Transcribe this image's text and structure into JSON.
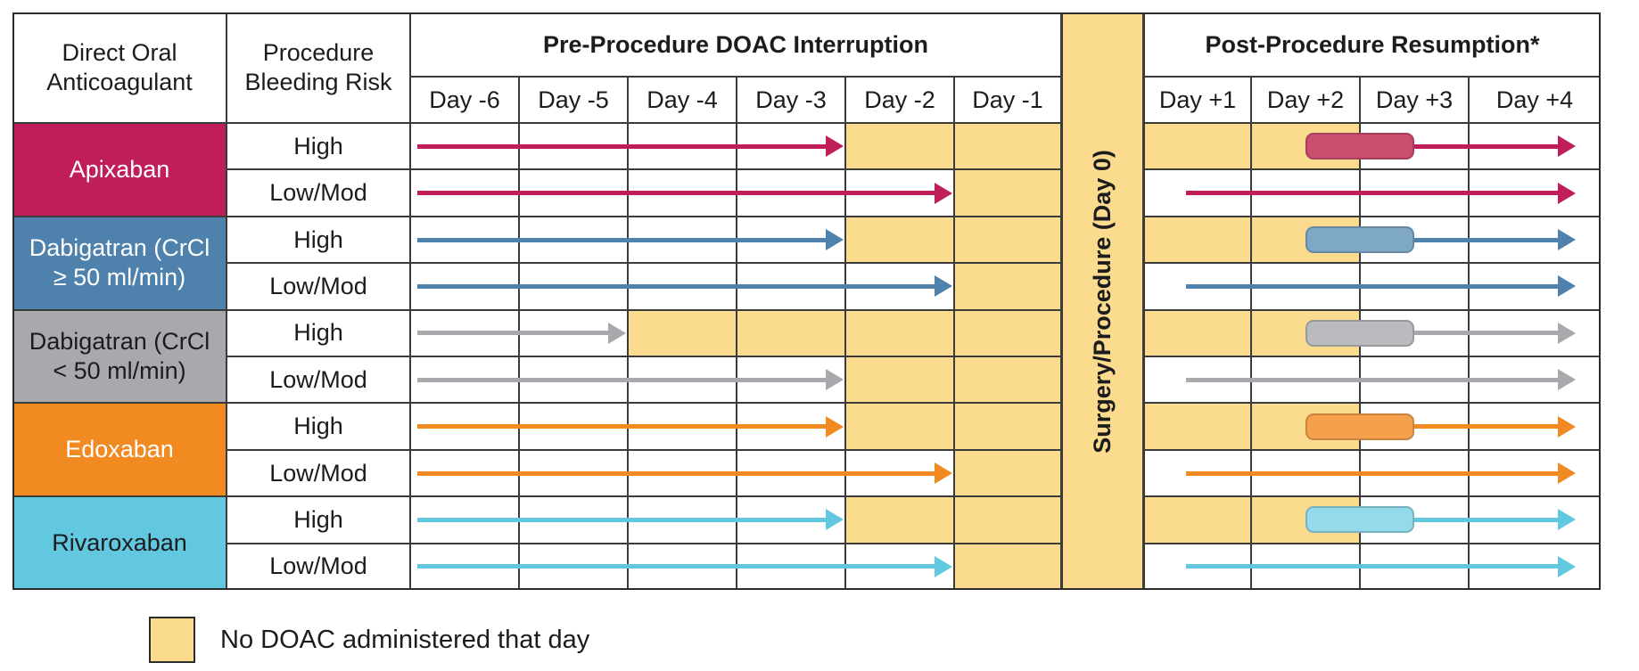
{
  "figure": {
    "headers": {
      "drug_col": "Direct Oral Anticoagulant",
      "risk_col": "Procedure Bleeding Risk",
      "pre_section": "Pre-Procedure DOAC Interruption",
      "surgery_col": "Surgery/Procedure (Day 0)",
      "post_section": "Post-Procedure Resumption*"
    },
    "legend": {
      "label": "No DOAC administered that day"
    }
  },
  "colors": {
    "no_doac_fill": "#FBDC8E",
    "grid_line": "#3B3B3B",
    "text_dark": "#1C1C1E",
    "drug_groups": {
      "apixaban": {
        "bg": "#C01E5A",
        "text": "#FFFFFF",
        "arrow": "#C01E5A",
        "pill": "#CA4E70"
      },
      "dabigatran_crcl_ge_50": {
        "bg": "#4E81AC",
        "text": "#FFFFFF",
        "arrow": "#4E81AC",
        "pill": "#7FA7C6"
      },
      "dabigatran_crcl_lt_50": {
        "bg": "#A7A9AC",
        "text": "#1C1C1E",
        "arrow": "#A7A9AC",
        "pill": "#B9BBBE"
      },
      "edoxaban": {
        "bg": "#F18A21",
        "text": "#FFFFFF",
        "arrow": "#F18A21",
        "pill": "#F5A04C"
      },
      "rivaroxaban": {
        "bg": "#62C8E0",
        "text": "#1C1C1E",
        "arrow": "#62C8E0",
        "pill": "#94DAEA"
      }
    }
  },
  "chart_data": {
    "type": "table",
    "title": "DOAC periprocedural interruption and resumption schedule",
    "pre_day_columns": [
      "Day -6",
      "Day -5",
      "Day -4",
      "Day -3",
      "Day -2",
      "Day -1"
    ],
    "surgery_column": "Surgery/Procedure (Day 0)",
    "post_day_columns": [
      "Day +1",
      "Day +2",
      "Day +3",
      "Day +4"
    ],
    "legend": "No DOAC administered that day",
    "drug_groups": [
      {
        "key": "apixaban",
        "label": "Apixaban"
      },
      {
        "key": "dabigatran_crcl_ge_50",
        "label": "Dabigatran (CrCl ≥ 50 ml/min)"
      },
      {
        "key": "dabigatran_crcl_lt_50",
        "label": "Dabigatran (CrCl < 50 ml/min)"
      },
      {
        "key": "edoxaban",
        "label": "Edoxaban"
      },
      {
        "key": "rivaroxaban",
        "label": "Rivaroxaban"
      }
    ],
    "rows": [
      {
        "drug": "Apixaban",
        "group": "apixaban",
        "risk": "High",
        "pre_dose_days": [
          "Day -6",
          "Day -5",
          "Day -4",
          "Day -3"
        ],
        "pre_no_doac_days": [
          "Day -2",
          "Day -1"
        ],
        "day0_no_doac": true,
        "post_no_doac_days": [
          "Day +1",
          "Day +2"
        ],
        "resumption_window": [
          "Day +2",
          "Day +3"
        ],
        "post_continues_through": "Day +4"
      },
      {
        "drug": "Apixaban",
        "group": "apixaban",
        "risk": "Low/Mod",
        "pre_dose_days": [
          "Day -6",
          "Day -5",
          "Day -4",
          "Day -3",
          "Day -2"
        ],
        "pre_no_doac_days": [
          "Day -1"
        ],
        "day0_no_doac": true,
        "post_no_doac_days": [],
        "resumption_start": "Day +1",
        "post_continues_through": "Day +4"
      },
      {
        "drug": "Dabigatran (CrCl ≥ 50 ml/min)",
        "group": "dabigatran_crcl_ge_50",
        "risk": "High",
        "pre_dose_days": [
          "Day -6",
          "Day -5",
          "Day -4",
          "Day -3"
        ],
        "pre_no_doac_days": [
          "Day -2",
          "Day -1"
        ],
        "day0_no_doac": true,
        "post_no_doac_days": [
          "Day +1",
          "Day +2"
        ],
        "resumption_window": [
          "Day +2",
          "Day +3"
        ],
        "post_continues_through": "Day +4"
      },
      {
        "drug": "Dabigatran (CrCl ≥ 50 ml/min)",
        "group": "dabigatran_crcl_ge_50",
        "risk": "Low/Mod",
        "pre_dose_days": [
          "Day -6",
          "Day -5",
          "Day -4",
          "Day -3",
          "Day -2"
        ],
        "pre_no_doac_days": [
          "Day -1"
        ],
        "day0_no_doac": true,
        "post_no_doac_days": [],
        "resumption_start": "Day +1",
        "post_continues_through": "Day +4"
      },
      {
        "drug": "Dabigatran (CrCl < 50 ml/min)",
        "group": "dabigatran_crcl_lt_50",
        "risk": "High",
        "pre_dose_days": [
          "Day -6",
          "Day -5"
        ],
        "pre_no_doac_days": [
          "Day -4",
          "Day -3",
          "Day -2",
          "Day -1"
        ],
        "day0_no_doac": true,
        "post_no_doac_days": [
          "Day +1",
          "Day +2"
        ],
        "resumption_window": [
          "Day +2",
          "Day +3"
        ],
        "post_continues_through": "Day +4"
      },
      {
        "drug": "Dabigatran (CrCl < 50 ml/min)",
        "group": "dabigatran_crcl_lt_50",
        "risk": "Low/Mod",
        "pre_dose_days": [
          "Day -6",
          "Day -5",
          "Day -4",
          "Day -3"
        ],
        "pre_no_doac_days": [
          "Day -2",
          "Day -1"
        ],
        "day0_no_doac": true,
        "post_no_doac_days": [],
        "resumption_start": "Day +1",
        "post_continues_through": "Day +4"
      },
      {
        "drug": "Edoxaban",
        "group": "edoxaban",
        "risk": "High",
        "pre_dose_days": [
          "Day -6",
          "Day -5",
          "Day -4",
          "Day -3"
        ],
        "pre_no_doac_days": [
          "Day -2",
          "Day -1"
        ],
        "day0_no_doac": true,
        "post_no_doac_days": [
          "Day +1",
          "Day +2"
        ],
        "resumption_window": [
          "Day +2",
          "Day +3"
        ],
        "post_continues_through": "Day +4"
      },
      {
        "drug": "Edoxaban",
        "group": "edoxaban",
        "risk": "Low/Mod",
        "pre_dose_days": [
          "Day -6",
          "Day -5",
          "Day -4",
          "Day -3",
          "Day -2"
        ],
        "pre_no_doac_days": [
          "Day -1"
        ],
        "day0_no_doac": true,
        "post_no_doac_days": [],
        "resumption_start": "Day +1",
        "post_continues_through": "Day +4"
      },
      {
        "drug": "Rivaroxaban",
        "group": "rivaroxaban",
        "risk": "High",
        "pre_dose_days": [
          "Day -6",
          "Day -5",
          "Day -4",
          "Day -3"
        ],
        "pre_no_doac_days": [
          "Day -2",
          "Day -1"
        ],
        "day0_no_doac": true,
        "post_no_doac_days": [
          "Day +1",
          "Day +2"
        ],
        "resumption_window": [
          "Day +2",
          "Day +3"
        ],
        "post_continues_through": "Day +4"
      },
      {
        "drug": "Rivaroxaban",
        "group": "rivaroxaban",
        "risk": "Low/Mod",
        "pre_dose_days": [
          "Day -6",
          "Day -5",
          "Day -4",
          "Day -3",
          "Day -2"
        ],
        "pre_no_doac_days": [
          "Day -1"
        ],
        "day0_no_doac": true,
        "post_no_doac_days": [],
        "resumption_start": "Day +1",
        "post_continues_through": "Day +4"
      }
    ]
  }
}
